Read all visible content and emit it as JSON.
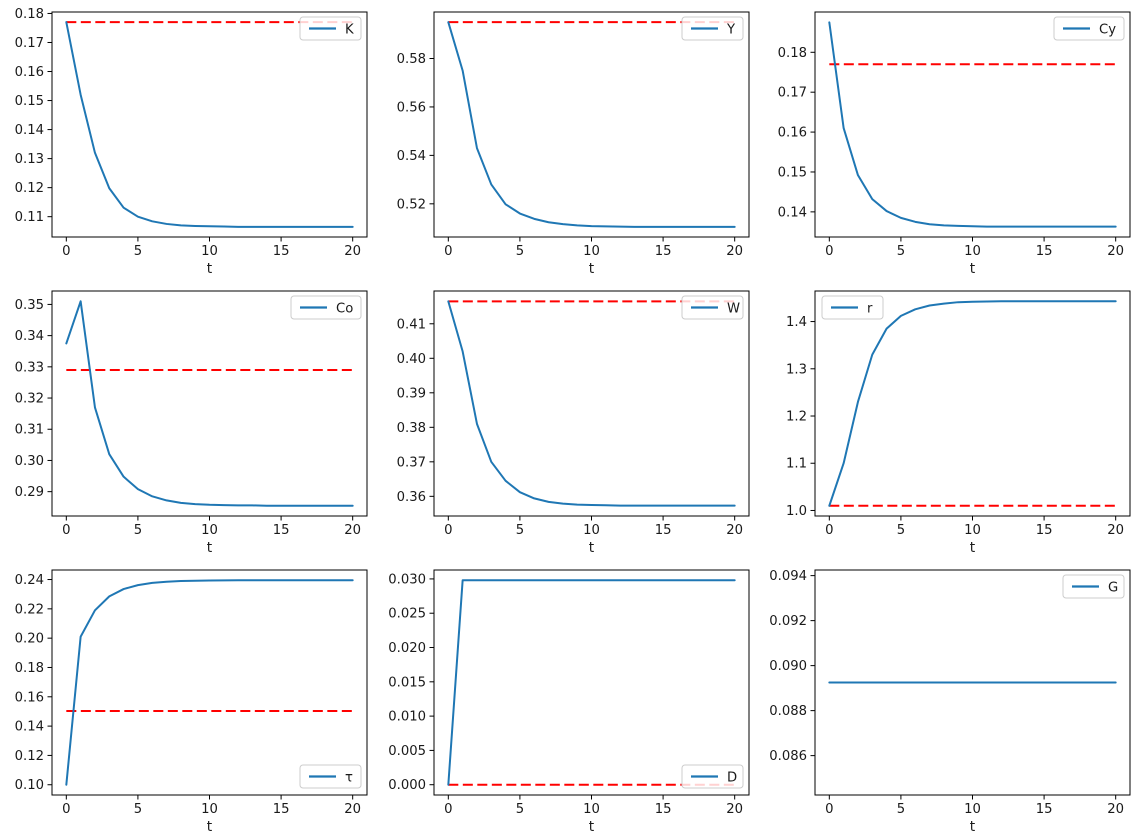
{
  "figure": {
    "background": "#ffffff",
    "xlabel": "t"
  },
  "style": {
    "line_color": "#1f77b4",
    "steady_state_color": "#ff0000",
    "axis_color": "#000000",
    "tick_label_color": "#1a1a1a",
    "legend_border_color": "#cccccc",
    "legend_bg": "rgba(255,255,255,0.82)"
  },
  "chart_data": [
    {
      "type": "line",
      "name": "K",
      "legend": {
        "label": "K",
        "position": "upper-right"
      },
      "xlabel": "t",
      "x": [
        0,
        1,
        2,
        3,
        4,
        5,
        6,
        7,
        8,
        9,
        10,
        11,
        12,
        13,
        14,
        15,
        16,
        17,
        18,
        19,
        20
      ],
      "values": [
        0.177,
        0.152,
        0.132,
        0.1198,
        0.1131,
        0.11,
        0.1084,
        0.1075,
        0.107,
        0.1068,
        0.1067,
        0.1066,
        0.1065,
        0.1065,
        0.1065,
        0.1065,
        0.1065,
        0.1065,
        0.1065,
        0.1065,
        0.1065
      ],
      "steady_state": 0.177,
      "xlim": [
        -1,
        21
      ],
      "ylim": [
        0.103,
        0.1805
      ],
      "xticks": [
        0,
        5,
        10,
        15,
        20
      ],
      "xtick_labels": [
        "0",
        "5",
        "10",
        "15",
        "20"
      ],
      "yticks": [
        0.11,
        0.12,
        0.13,
        0.14,
        0.15,
        0.16,
        0.17,
        0.18
      ],
      "ytick_labels": [
        "0.11",
        "0.12",
        "0.13",
        "0.14",
        "0.15",
        "0.16",
        "0.17",
        "0.18"
      ]
    },
    {
      "type": "line",
      "name": "Y",
      "legend": {
        "label": "Y",
        "position": "upper-right"
      },
      "xlabel": "t",
      "x": [
        0,
        1,
        2,
        3,
        4,
        5,
        6,
        7,
        8,
        9,
        10,
        11,
        12,
        13,
        14,
        15,
        16,
        17,
        18,
        19,
        20
      ],
      "values": [
        0.595,
        0.575,
        0.543,
        0.528,
        0.5198,
        0.516,
        0.5138,
        0.5124,
        0.5116,
        0.5111,
        0.5108,
        0.5107,
        0.5106,
        0.5105,
        0.5105,
        0.5105,
        0.5105,
        0.5105,
        0.5105,
        0.5105,
        0.5105
      ],
      "steady_state": 0.595,
      "xlim": [
        -1,
        21
      ],
      "ylim": [
        0.5063,
        0.5992
      ],
      "xticks": [
        0,
        5,
        10,
        15,
        20
      ],
      "xtick_labels": [
        "0",
        "5",
        "10",
        "15",
        "20"
      ],
      "yticks": [
        0.52,
        0.54,
        0.56,
        0.58
      ],
      "ytick_labels": [
        "0.52",
        "0.54",
        "0.56",
        "0.58"
      ]
    },
    {
      "type": "line",
      "name": "Cy",
      "legend": {
        "label": "Cy",
        "position": "upper-right"
      },
      "xlabel": "t",
      "x": [
        0,
        1,
        2,
        3,
        4,
        5,
        6,
        7,
        8,
        9,
        10,
        11,
        12,
        13,
        14,
        15,
        16,
        17,
        18,
        19,
        20
      ],
      "values": [
        0.1875,
        0.161,
        0.1492,
        0.1432,
        0.1402,
        0.1385,
        0.1375,
        0.1369,
        0.1366,
        0.1365,
        0.1364,
        0.1363,
        0.1363,
        0.1363,
        0.1363,
        0.1363,
        0.1363,
        0.1363,
        0.1363,
        0.1363,
        0.1363
      ],
      "steady_state": 0.177,
      "xlim": [
        -1,
        21
      ],
      "ylim": [
        0.1337,
        0.1901
      ],
      "xticks": [
        0,
        5,
        10,
        15,
        20
      ],
      "xtick_labels": [
        "0",
        "5",
        "10",
        "15",
        "20"
      ],
      "yticks": [
        0.14,
        0.15,
        0.16,
        0.17,
        0.18
      ],
      "ytick_labels": [
        "0.14",
        "0.15",
        "0.16",
        "0.17",
        "0.18"
      ]
    },
    {
      "type": "line",
      "name": "Co",
      "legend": {
        "label": "Co",
        "position": "upper-right"
      },
      "xlabel": "t",
      "x": [
        0,
        1,
        2,
        3,
        4,
        5,
        6,
        7,
        8,
        9,
        10,
        11,
        12,
        13,
        14,
        15,
        16,
        17,
        18,
        19,
        20
      ],
      "values": [
        0.3375,
        0.351,
        0.317,
        0.302,
        0.2948,
        0.2908,
        0.2885,
        0.2872,
        0.2864,
        0.286,
        0.2858,
        0.2857,
        0.2856,
        0.2856,
        0.2855,
        0.2855,
        0.2855,
        0.2855,
        0.2855,
        0.2855,
        0.2855
      ],
      "steady_state": 0.329,
      "xlim": [
        -1,
        21
      ],
      "ylim": [
        0.2822,
        0.3543
      ],
      "xticks": [
        0,
        5,
        10,
        15,
        20
      ],
      "xtick_labels": [
        "0",
        "5",
        "10",
        "15",
        "20"
      ],
      "yticks": [
        0.29,
        0.3,
        0.31,
        0.32,
        0.33,
        0.34,
        0.35
      ],
      "ytick_labels": [
        "0.29",
        "0.30",
        "0.31",
        "0.32",
        "0.33",
        "0.34",
        "0.35"
      ]
    },
    {
      "type": "line",
      "name": "W",
      "legend": {
        "label": "W",
        "position": "upper-right"
      },
      "xlabel": "t",
      "x": [
        0,
        1,
        2,
        3,
        4,
        5,
        6,
        7,
        8,
        9,
        10,
        11,
        12,
        13,
        14,
        15,
        16,
        17,
        18,
        19,
        20
      ],
      "values": [
        0.4165,
        0.402,
        0.381,
        0.37,
        0.3645,
        0.3612,
        0.3594,
        0.3584,
        0.3579,
        0.3576,
        0.3575,
        0.3574,
        0.3573,
        0.3573,
        0.3573,
        0.3573,
        0.3573,
        0.3573,
        0.3573,
        0.3573,
        0.3573
      ],
      "steady_state": 0.4165,
      "xlim": [
        -1,
        21
      ],
      "ylim": [
        0.3543,
        0.4195
      ],
      "xticks": [
        0,
        5,
        10,
        15,
        20
      ],
      "xtick_labels": [
        "0",
        "5",
        "10",
        "15",
        "20"
      ],
      "yticks": [
        0.36,
        0.37,
        0.38,
        0.39,
        0.4,
        0.41
      ],
      "ytick_labels": [
        "0.36",
        "0.37",
        "0.38",
        "0.39",
        "0.40",
        "0.41"
      ]
    },
    {
      "type": "line",
      "name": "r",
      "legend": {
        "label": "r",
        "position": "upper-left"
      },
      "xlabel": "t",
      "x": [
        0,
        1,
        2,
        3,
        4,
        5,
        6,
        7,
        8,
        9,
        10,
        11,
        12,
        13,
        14,
        15,
        16,
        17,
        18,
        19,
        20
      ],
      "values": [
        1.01,
        1.1,
        1.23,
        1.33,
        1.385,
        1.412,
        1.426,
        1.434,
        1.438,
        1.441,
        1.442,
        1.4425,
        1.443,
        1.443,
        1.443,
        1.443,
        1.443,
        1.443,
        1.443,
        1.443,
        1.443
      ],
      "steady_state": 1.01,
      "xlim": [
        -1,
        21
      ],
      "ylim": [
        0.9883,
        1.4647
      ],
      "xticks": [
        0,
        5,
        10,
        15,
        20
      ],
      "xtick_labels": [
        "0",
        "5",
        "10",
        "15",
        "20"
      ],
      "yticks": [
        1.0,
        1.1,
        1.2,
        1.3,
        1.4
      ],
      "ytick_labels": [
        "1.0",
        "1.1",
        "1.2",
        "1.3",
        "1.4"
      ]
    },
    {
      "type": "line",
      "name": "tau",
      "legend": {
        "label": "τ",
        "position": "lower-right"
      },
      "xlabel": "t",
      "x": [
        0,
        1,
        2,
        3,
        4,
        5,
        6,
        7,
        8,
        9,
        10,
        11,
        12,
        13,
        14,
        15,
        16,
        17,
        18,
        19,
        20
      ],
      "values": [
        0.1,
        0.201,
        0.219,
        0.2285,
        0.2335,
        0.2362,
        0.2377,
        0.2385,
        0.239,
        0.2392,
        0.2393,
        0.2394,
        0.2395,
        0.2395,
        0.2395,
        0.2395,
        0.2395,
        0.2395,
        0.2395,
        0.2395,
        0.2395
      ],
      "steady_state": 0.1503,
      "xlim": [
        -1,
        21
      ],
      "ylim": [
        0.093,
        0.2465
      ],
      "xticks": [
        0,
        5,
        10,
        15,
        20
      ],
      "xtick_labels": [
        "0",
        "5",
        "10",
        "15",
        "20"
      ],
      "yticks": [
        0.1,
        0.12,
        0.14,
        0.16,
        0.18,
        0.2,
        0.22,
        0.24
      ],
      "ytick_labels": [
        "0.10",
        "0.12",
        "0.14",
        "0.16",
        "0.18",
        "0.20",
        "0.22",
        "0.24"
      ]
    },
    {
      "type": "line",
      "name": "D",
      "legend": {
        "label": "D",
        "position": "lower-right"
      },
      "xlabel": "t",
      "x": [
        0,
        1,
        2,
        3,
        4,
        5,
        6,
        7,
        8,
        9,
        10,
        11,
        12,
        13,
        14,
        15,
        16,
        17,
        18,
        19,
        20
      ],
      "values": [
        0.0,
        0.0298,
        0.0298,
        0.0298,
        0.0298,
        0.0298,
        0.0298,
        0.0298,
        0.0298,
        0.0298,
        0.0298,
        0.0298,
        0.0298,
        0.0298,
        0.0298,
        0.0298,
        0.0298,
        0.0298,
        0.0298,
        0.0298,
        0.0298
      ],
      "steady_state": 0.0,
      "xlim": [
        -1,
        21
      ],
      "ylim": [
        -0.0015,
        0.0313
      ],
      "xticks": [
        0,
        5,
        10,
        15,
        20
      ],
      "xtick_labels": [
        "0",
        "5",
        "10",
        "15",
        "20"
      ],
      "yticks": [
        0.0,
        0.005,
        0.01,
        0.015,
        0.02,
        0.025,
        0.03
      ],
      "ytick_labels": [
        "0.000",
        "0.005",
        "0.010",
        "0.015",
        "0.020",
        "0.025",
        "0.030"
      ]
    },
    {
      "type": "line",
      "name": "G",
      "legend": {
        "label": "G",
        "position": "upper-right"
      },
      "xlabel": "t",
      "x": [
        0,
        1,
        2,
        3,
        4,
        5,
        6,
        7,
        8,
        9,
        10,
        11,
        12,
        13,
        14,
        15,
        16,
        17,
        18,
        19,
        20
      ],
      "values": [
        0.08925,
        0.08925,
        0.08925,
        0.08925,
        0.08925,
        0.08925,
        0.08925,
        0.08925,
        0.08925,
        0.08925,
        0.08925,
        0.08925,
        0.08925,
        0.08925,
        0.08925,
        0.08925,
        0.08925,
        0.08925,
        0.08925,
        0.08925,
        0.08925
      ],
      "steady_state": 0.08925,
      "xlim": [
        -1,
        21
      ],
      "ylim": [
        0.08425,
        0.09425
      ],
      "xticks": [
        0,
        5,
        10,
        15,
        20
      ],
      "xtick_labels": [
        "0",
        "5",
        "10",
        "15",
        "20"
      ],
      "yticks": [
        0.086,
        0.088,
        0.09,
        0.092,
        0.094
      ],
      "ytick_labels": [
        "0.086",
        "0.088",
        "0.090",
        "0.092",
        "0.094"
      ]
    }
  ]
}
